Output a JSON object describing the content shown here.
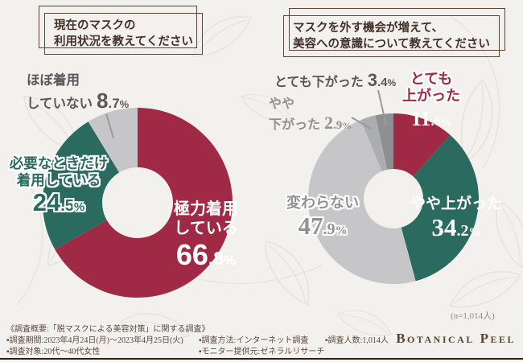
{
  "questions": {
    "left": {
      "line1": "現在のマスクの",
      "line2": "利用状況を教えてください"
    },
    "right": {
      "line1": "マスクを外す機会が増えて、",
      "line2": "美容への意識について教えてください"
    }
  },
  "chart_data": [
    {
      "type": "donut",
      "title": "現在のマスクの利用状況を教えてください",
      "legend_position": "on-chart",
      "segments": [
        {
          "label": "極力着用している",
          "value": 66.8,
          "color": "#a02945"
        },
        {
          "label": "必要なときだけ着用している",
          "value": 24.5,
          "color": "#2a6a5f"
        },
        {
          "label": "ほぼ着用していない",
          "value": 8.7,
          "color": "#c6c6c8"
        }
      ]
    },
    {
      "type": "donut",
      "title": "マスクを外す機会が増えて、美容への意識について教えてください",
      "legend_position": "on-chart",
      "segments": [
        {
          "label": "とても上がった",
          "value": 11.6,
          "color": "#a02945"
        },
        {
          "label": "やや上がった",
          "value": 34.2,
          "color": "#2a6a5f"
        },
        {
          "label": "変わらない",
          "value": 47.9,
          "color": "#c6c6c8"
        },
        {
          "label": "やや下がった",
          "value": 2.9,
          "color": "#acadaf"
        },
        {
          "label": "とても下がった",
          "value": 3.4,
          "color": "#8e8f91"
        }
      ]
    }
  ],
  "labels": {
    "mostly": {
      "line1": "極力着用",
      "line2": "している",
      "int": "66",
      "dec": ".8",
      "pct": "%"
    },
    "sometimes": {
      "line1": "必要なときだけ",
      "line2": "着用している",
      "int": "24",
      "dec": ".5",
      "pct": "%"
    },
    "rarely": {
      "line1": "ほぼ着用",
      "line2": "していない",
      "int": "8",
      "dec": ".7",
      "pct": "%"
    },
    "very_up": {
      "line1": "とても",
      "line2": "上がった",
      "int": "11",
      "dec": ".6",
      "pct": "%"
    },
    "some_up": {
      "line1": "やや上がった",
      "int": "34",
      "dec": ".2",
      "pct": "%"
    },
    "unchanged": {
      "line1": "変わらない",
      "int": "47",
      "dec": ".9",
      "pct": "%"
    },
    "some_down": {
      "line1": "やや",
      "line2": "下がった",
      "int": "2",
      "dec": ".9",
      "pct": "%"
    },
    "very_down": {
      "line1": "とても下がった",
      "int": "3",
      "dec": ".4",
      "pct": "%"
    }
  },
  "note": {
    "sample_size": "(n=1,014人)"
  },
  "footer": {
    "overview": "《調査概要:「脱マスクによる美容対策」に関する調査》",
    "period": "▪調査期間:2023年4月24日(月)〜2023年4月25日(火)",
    "subjects": "▪調査対象:20代〜40代女性",
    "method": "▪調査方法:インターネット調査",
    "monitor": "▪モニター提供元:ゼネラルリサーチ",
    "count": "▪調査人数:1,014人",
    "logo": "Botanical Peel"
  },
  "colors": {
    "accent_red": "#a02945",
    "accent_green": "#2a6a5f",
    "gray_light": "#c6c6c8",
    "gray_medium": "#acadaf",
    "gray_dark": "#8e8f91",
    "background": "#f3f1ee",
    "frame_brown": "#5d4434",
    "rule_brown": "#301d12"
  }
}
